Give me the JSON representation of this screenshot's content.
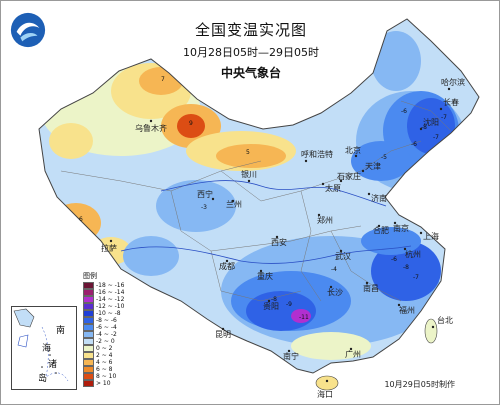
{
  "header": {
    "title": "全国变温实况图",
    "period": "10月28日05时—29日05时",
    "agency": "中央气象台"
  },
  "legend": {
    "title": "图例",
    "items": [
      {
        "label": "-18 ~ -16",
        "color": "#6b1535"
      },
      {
        "label": "-16 ~ -14",
        "color": "#9b1f6f"
      },
      {
        "label": "-14 ~ -12",
        "color": "#b12fd0"
      },
      {
        "label": "-12 ~ -10",
        "color": "#5a2fd0"
      },
      {
        "label": "-10 ~ -8",
        "color": "#1f3fd8"
      },
      {
        "label": "-8 ~ -6",
        "color": "#2f62e6"
      },
      {
        "label": "-6 ~ -4",
        "color": "#4b8af0"
      },
      {
        "label": "-4 ~ -2",
        "color": "#86b8f3"
      },
      {
        "label": "-2 ~ 0",
        "color": "#c2def7"
      },
      {
        "label": "0 ~ 2",
        "color": "#ecf4c8"
      },
      {
        "label": "2 ~ 4",
        "color": "#f8e28c"
      },
      {
        "label": "4 ~ 6",
        "color": "#f6b654"
      },
      {
        "label": "6 ~ 8",
        "color": "#ef8a28"
      },
      {
        "label": "8 ~ 10",
        "color": "#dc4d14"
      },
      {
        "label": "> 10",
        "color": "#b01d0c"
      }
    ]
  },
  "cities": [
    {
      "name": "乌鲁木齐"
    },
    {
      "name": "哈尔滨"
    },
    {
      "name": "长春"
    },
    {
      "name": "沈阳"
    },
    {
      "name": "北京"
    },
    {
      "name": "天津"
    },
    {
      "name": "呼和浩特"
    },
    {
      "name": "银川"
    },
    {
      "name": "兰州"
    },
    {
      "name": "西宁"
    },
    {
      "name": "拉萨"
    },
    {
      "name": "太原"
    },
    {
      "name": "石家庄"
    },
    {
      "name": "济南"
    },
    {
      "name": "郑州"
    },
    {
      "name": "西安"
    },
    {
      "name": "合肥"
    },
    {
      "name": "南京"
    },
    {
      "name": "上海"
    },
    {
      "name": "武汉"
    },
    {
      "name": "杭州"
    },
    {
      "name": "成都"
    },
    {
      "name": "重庆"
    },
    {
      "name": "长沙"
    },
    {
      "name": "南昌"
    },
    {
      "name": "贵阳"
    },
    {
      "name": "福州"
    },
    {
      "name": "台北"
    },
    {
      "name": "昆明"
    },
    {
      "name": "南宁"
    },
    {
      "name": "广州"
    },
    {
      "name": "海口"
    }
  ],
  "inset": {
    "label_1": "南",
    "label_2": "海",
    "label_3": "诸",
    "label_4": "岛"
  },
  "footer": {
    "note": "10月29日05时制作"
  }
}
